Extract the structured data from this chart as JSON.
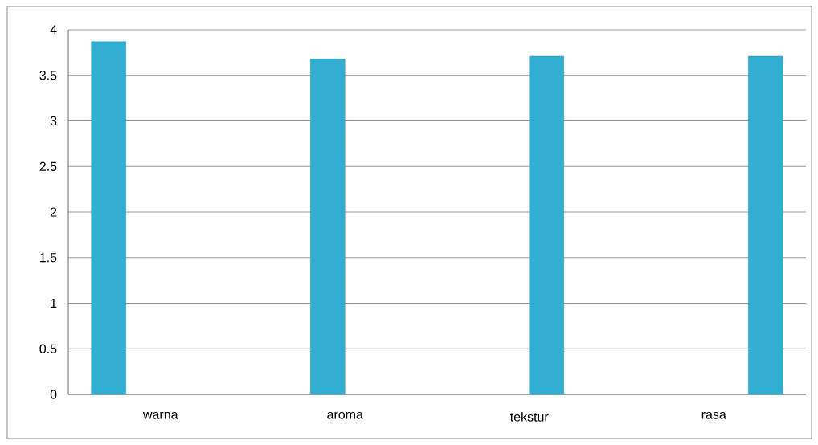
{
  "chart_data": {
    "type": "bar",
    "categories": [
      "warna",
      "aroma",
      "tekstur",
      "rasa"
    ],
    "series": [
      {
        "color": "#33aed0",
        "values": [
          3.87,
          null,
          null,
          null
        ]
      },
      {
        "color": "#33aed0",
        "values": [
          null,
          3.68,
          null,
          null
        ]
      },
      {
        "color": "#33aed0",
        "values": [
          null,
          null,
          3.71,
          null
        ]
      },
      {
        "color": "#33aed0",
        "values": [
          null,
          null,
          null,
          3.71
        ]
      }
    ],
    "ylim": [
      0,
      4
    ],
    "yticks": [
      0,
      0.5,
      1,
      1.5,
      2,
      2.5,
      3,
      3.5,
      4
    ],
    "grid": "y"
  }
}
